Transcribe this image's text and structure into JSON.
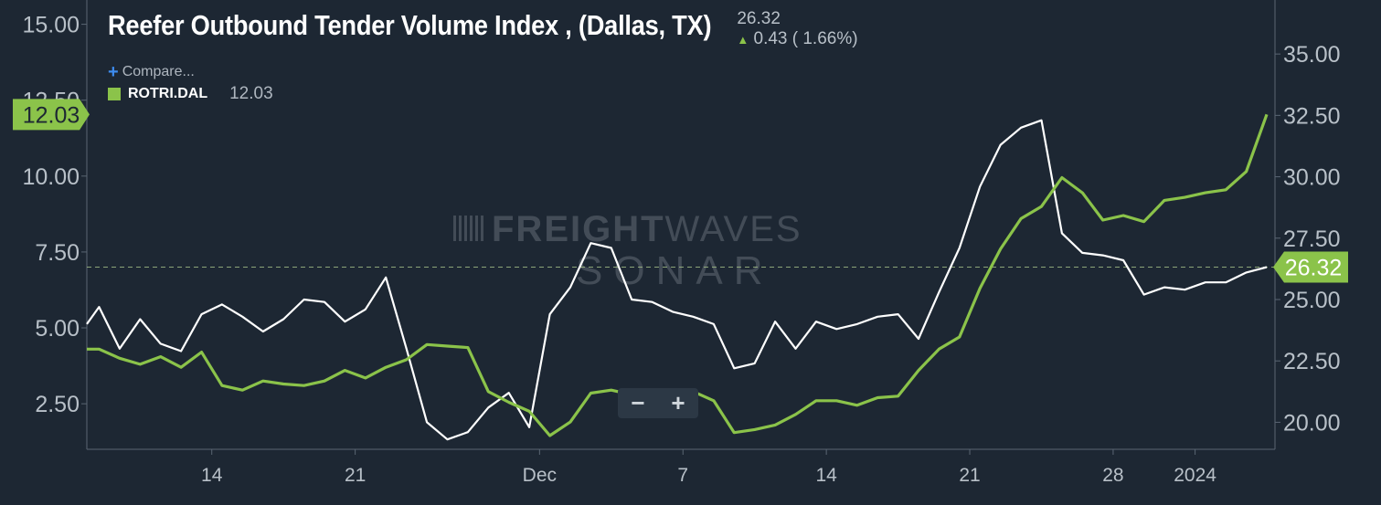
{
  "header": {
    "title": "Reefer Outbound Tender Volume Index , (Dallas, TX)",
    "last_value": "26.32",
    "change": "0.43 ( 1.66%)"
  },
  "compare_label": "Compare...",
  "legend": {
    "symbol": "ROTRI.DAL",
    "value": "12.03"
  },
  "colors": {
    "background": "#1d2733",
    "primary_line": "#ffffff",
    "compare_line": "#8bc34a",
    "accent_up": "#8bc34a",
    "plus": "#3d8cf0"
  },
  "watermark": {
    "line1_bold": "FREIGHT",
    "line1_light": "WAVES",
    "line2": "SONAR"
  },
  "zoom": {
    "minus": "−",
    "plus": "+"
  },
  "chart_data": {
    "type": "line",
    "title": "Reefer Outbound Tender Volume Index , (Dallas, TX)",
    "x_ticks": [
      {
        "label": "14",
        "i": 14
      },
      {
        "label": "21",
        "i": 21
      },
      {
        "label": "Dec",
        "i": 30
      },
      {
        "label": "7",
        "i": 37
      },
      {
        "label": "14",
        "i": 44
      },
      {
        "label": "21",
        "i": 51
      },
      {
        "label": "28",
        "i": 58
      },
      {
        "label": "2024",
        "i": 62
      }
    ],
    "x_domain": [
      7.9,
      65.9
    ],
    "left_axis": {
      "ticks": [
        2.5,
        5.0,
        7.5,
        10.0,
        12.5,
        15.0
      ],
      "range": [
        1.0,
        15.8
      ],
      "current_marker": "12.03"
    },
    "right_axis": {
      "ticks": [
        20.0,
        22.5,
        25.0,
        27.5,
        30.0,
        32.5,
        35.0
      ],
      "range": [
        18.9,
        37.2
      ],
      "current_marker": "26.32"
    },
    "reference_line": {
      "value": 26.32,
      "axis": "right",
      "style": "dashed"
    },
    "series": [
      {
        "name": "Reefer Outbound Tender Volume Index , (Dallas, TX)",
        "axis": "right",
        "points": [
          [
            7.9,
            24.0
          ],
          [
            8.5,
            24.7
          ],
          [
            9.5,
            23.0
          ],
          [
            10.5,
            24.2
          ],
          [
            11.5,
            23.2
          ],
          [
            12.5,
            22.9
          ],
          [
            13.5,
            24.4
          ],
          [
            14.5,
            24.8
          ],
          [
            15.5,
            24.3
          ],
          [
            16.5,
            23.7
          ],
          [
            17.5,
            24.2
          ],
          [
            18.5,
            25.0
          ],
          [
            19.5,
            24.9
          ],
          [
            20.5,
            24.1
          ],
          [
            21.5,
            24.6
          ],
          [
            22.5,
            25.9
          ],
          [
            23.5,
            23.0
          ],
          [
            24.5,
            20.0
          ],
          [
            25.5,
            19.3
          ],
          [
            26.5,
            19.6
          ],
          [
            27.5,
            20.6
          ],
          [
            28.5,
            21.2
          ],
          [
            29.5,
            19.8
          ],
          [
            30.5,
            24.4
          ],
          [
            31.5,
            25.5
          ],
          [
            32.5,
            27.3
          ],
          [
            33.5,
            27.1
          ],
          [
            34.5,
            25.0
          ],
          [
            35.5,
            24.9
          ],
          [
            36.5,
            24.5
          ],
          [
            37.5,
            24.3
          ],
          [
            38.5,
            24.0
          ],
          [
            39.5,
            22.2
          ],
          [
            40.5,
            22.4
          ],
          [
            41.5,
            24.1
          ],
          [
            42.5,
            23.0
          ],
          [
            43.5,
            24.1
          ],
          [
            44.5,
            23.8
          ],
          [
            45.5,
            24.0
          ],
          [
            46.5,
            24.3
          ],
          [
            47.5,
            24.4
          ],
          [
            48.5,
            23.4
          ],
          [
            49.5,
            25.3
          ],
          [
            50.5,
            27.1
          ],
          [
            51.5,
            29.6
          ],
          [
            52.5,
            31.3
          ],
          [
            53.5,
            32.0
          ],
          [
            54.5,
            32.3
          ],
          [
            55.5,
            27.7
          ],
          [
            56.5,
            26.9
          ],
          [
            57.5,
            26.8
          ],
          [
            58.5,
            26.6
          ],
          [
            59.5,
            25.2
          ],
          [
            60.5,
            25.5
          ],
          [
            61.5,
            25.4
          ],
          [
            62.5,
            25.7
          ],
          [
            63.5,
            25.7
          ],
          [
            64.5,
            26.1
          ],
          [
            65.5,
            26.32
          ]
        ]
      },
      {
        "name": "ROTRI.DAL",
        "axis": "left",
        "points": [
          [
            7.9,
            4.3
          ],
          [
            8.5,
            4.3
          ],
          [
            9.5,
            4.0
          ],
          [
            10.5,
            3.8
          ],
          [
            11.5,
            4.05
          ],
          [
            12.5,
            3.7
          ],
          [
            13.5,
            4.2
          ],
          [
            14.5,
            3.1
          ],
          [
            15.5,
            2.95
          ],
          [
            16.5,
            3.25
          ],
          [
            17.5,
            3.15
          ],
          [
            18.5,
            3.1
          ],
          [
            19.5,
            3.25
          ],
          [
            20.5,
            3.6
          ],
          [
            21.5,
            3.35
          ],
          [
            22.5,
            3.7
          ],
          [
            23.5,
            3.95
          ],
          [
            24.5,
            4.45
          ],
          [
            25.5,
            4.4
          ],
          [
            26.5,
            4.35
          ],
          [
            27.5,
            2.9
          ],
          [
            28.5,
            2.55
          ],
          [
            29.5,
            2.25
          ],
          [
            30.5,
            1.45
          ],
          [
            31.5,
            1.9
          ],
          [
            32.5,
            2.85
          ],
          [
            33.5,
            2.95
          ],
          [
            34.5,
            2.8
          ],
          [
            35.5,
            2.9
          ],
          [
            36.5,
            2.85
          ],
          [
            37.5,
            2.9
          ],
          [
            38.5,
            2.6
          ],
          [
            39.5,
            1.55
          ],
          [
            40.5,
            1.65
          ],
          [
            41.5,
            1.8
          ],
          [
            42.5,
            2.15
          ],
          [
            43.5,
            2.6
          ],
          [
            44.5,
            2.6
          ],
          [
            45.5,
            2.45
          ],
          [
            46.5,
            2.7
          ],
          [
            47.5,
            2.75
          ],
          [
            48.5,
            3.6
          ],
          [
            49.5,
            4.3
          ],
          [
            50.5,
            4.7
          ],
          [
            51.5,
            6.3
          ],
          [
            52.5,
            7.6
          ],
          [
            53.5,
            8.6
          ],
          [
            54.5,
            9.0
          ],
          [
            55.5,
            9.95
          ],
          [
            56.5,
            9.45
          ],
          [
            57.5,
            8.55
          ],
          [
            58.5,
            8.7
          ],
          [
            59.5,
            8.5
          ],
          [
            60.5,
            9.2
          ],
          [
            61.5,
            9.3
          ],
          [
            62.5,
            9.45
          ],
          [
            63.5,
            9.55
          ],
          [
            64.5,
            10.15
          ],
          [
            65.5,
            12.03
          ]
        ]
      }
    ]
  }
}
